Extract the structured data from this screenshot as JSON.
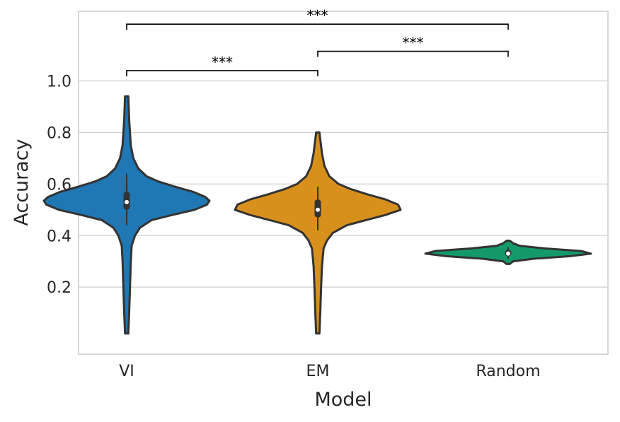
{
  "chart_data": {
    "type": "violin",
    "xlabel": "Model",
    "ylabel": "Accuracy",
    "ylim": [
      -0.06,
      1.27
    ],
    "yticks": [
      0.2,
      0.4,
      0.6,
      0.8,
      1.0
    ],
    "ytick_labels": [
      "0.2",
      "0.4",
      "0.6",
      "0.8",
      "1.0"
    ],
    "grid": "horizontal",
    "categories": [
      "VI",
      "EM",
      "Random"
    ],
    "colors": [
      "#1f77b4",
      "#d8901c",
      "#149a6a"
    ],
    "series": [
      {
        "name": "VI",
        "min": 0.02,
        "max": 0.94,
        "q1": 0.5,
        "median": 0.53,
        "q3": 0.57,
        "whisker_low": 0.44,
        "whisker_high": 0.64,
        "density": [
          [
            0.02,
            0.02
          ],
          [
            0.1,
            0.03
          ],
          [
            0.2,
            0.04
          ],
          [
            0.3,
            0.05
          ],
          [
            0.36,
            0.06
          ],
          [
            0.4,
            0.1
          ],
          [
            0.43,
            0.16
          ],
          [
            0.46,
            0.3
          ],
          [
            0.48,
            0.55
          ],
          [
            0.5,
            0.82
          ],
          [
            0.52,
            0.97
          ],
          [
            0.535,
            1.0
          ],
          [
            0.55,
            0.95
          ],
          [
            0.57,
            0.8
          ],
          [
            0.59,
            0.58
          ],
          [
            0.61,
            0.38
          ],
          [
            0.63,
            0.24
          ],
          [
            0.66,
            0.14
          ],
          [
            0.7,
            0.08
          ],
          [
            0.75,
            0.05
          ],
          [
            0.85,
            0.03
          ],
          [
            0.94,
            0.02
          ]
        ]
      },
      {
        "name": "EM",
        "min": 0.02,
        "max": 0.8,
        "q1": 0.47,
        "median": 0.5,
        "q3": 0.54,
        "whisker_low": 0.42,
        "whisker_high": 0.59,
        "density": [
          [
            0.02,
            0.02
          ],
          [
            0.1,
            0.03
          ],
          [
            0.2,
            0.04
          ],
          [
            0.28,
            0.05
          ],
          [
            0.35,
            0.07
          ],
          [
            0.38,
            0.11
          ],
          [
            0.41,
            0.18
          ],
          [
            0.44,
            0.35
          ],
          [
            0.46,
            0.58
          ],
          [
            0.48,
            0.82
          ],
          [
            0.5,
            1.0
          ],
          [
            0.52,
            0.97
          ],
          [
            0.54,
            0.82
          ],
          [
            0.56,
            0.6
          ],
          [
            0.58,
            0.4
          ],
          [
            0.6,
            0.25
          ],
          [
            0.63,
            0.14
          ],
          [
            0.67,
            0.08
          ],
          [
            0.72,
            0.05
          ],
          [
            0.8,
            0.02
          ]
        ]
      },
      {
        "name": "Random",
        "min": 0.29,
        "max": 0.38,
        "q1": 0.32,
        "median": 0.33,
        "q3": 0.345,
        "whisker_low": 0.31,
        "whisker_high": 0.355,
        "density": [
          [
            0.29,
            0.02
          ],
          [
            0.3,
            0.06
          ],
          [
            0.31,
            0.3
          ],
          [
            0.32,
            0.75
          ],
          [
            0.33,
            1.0
          ],
          [
            0.34,
            0.88
          ],
          [
            0.35,
            0.45
          ],
          [
            0.36,
            0.14
          ],
          [
            0.37,
            0.06
          ],
          [
            0.38,
            0.02
          ]
        ]
      }
    ],
    "significance": [
      {
        "from": "VI",
        "to": "EM",
        "label": "***",
        "level": 1.04
      },
      {
        "from": "EM",
        "to": "Random",
        "label": "***",
        "level": 1.115
      },
      {
        "from": "VI",
        "to": "Random",
        "label": "***",
        "level": 1.22
      }
    ]
  }
}
